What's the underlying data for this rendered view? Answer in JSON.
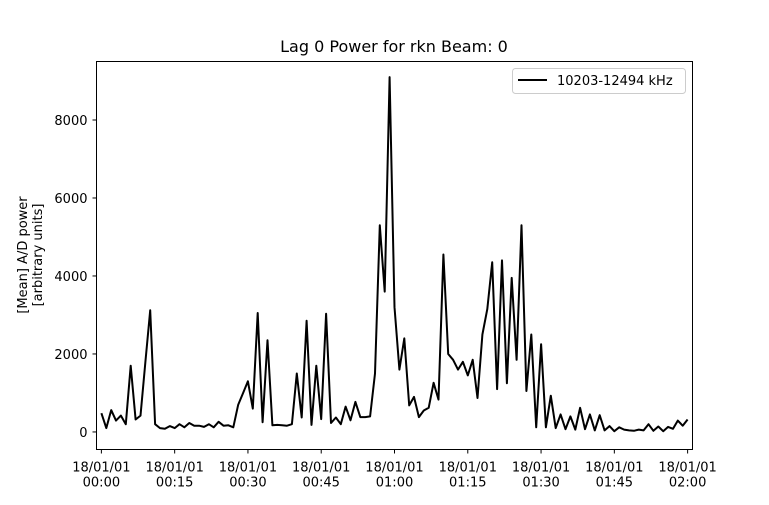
{
  "chart_data": {
    "type": "line",
    "title": "Lag 0 Power for rkn Beam: 0",
    "ylabel_line1": "[Mean] A/D power",
    "ylabel_line2": "[arbitrary units]",
    "xlabel": "",
    "ylim": [
      -450,
      9500
    ],
    "xlim": [
      -1,
      121
    ],
    "x_unit": "minutes after 18/01/01 00:00",
    "yticks": [
      0,
      2000,
      4000,
      6000,
      8000
    ],
    "xticks": [
      {
        "x": 0,
        "line1": "18/01/01",
        "line2": "00:00"
      },
      {
        "x": 15,
        "line1": "18/01/01",
        "line2": "00:15"
      },
      {
        "x": 30,
        "line1": "18/01/01",
        "line2": "00:30"
      },
      {
        "x": 45,
        "line1": "18/01/01",
        "line2": "00:45"
      },
      {
        "x": 60,
        "line1": "18/01/01",
        "line2": "01:00"
      },
      {
        "x": 75,
        "line1": "18/01/01",
        "line2": "01:15"
      },
      {
        "x": 90,
        "line1": "18/01/01",
        "line2": "01:30"
      },
      {
        "x": 105,
        "line1": "18/01/01",
        "line2": "01:45"
      },
      {
        "x": 120,
        "line1": "18/01/01",
        "line2": "02:00"
      }
    ],
    "legend_position": "top-right",
    "series": [
      {
        "name": "10203-12494 kHz",
        "color": "#000000",
        "points": [
          [
            0,
            480
          ],
          [
            1,
            100
          ],
          [
            2,
            560
          ],
          [
            3,
            290
          ],
          [
            4,
            420
          ],
          [
            5,
            200
          ],
          [
            6,
            1700
          ],
          [
            7,
            320
          ],
          [
            8,
            420
          ],
          [
            9,
            1800
          ],
          [
            10,
            3120
          ],
          [
            11,
            200
          ],
          [
            12,
            100
          ],
          [
            13,
            80
          ],
          [
            14,
            150
          ],
          [
            15,
            100
          ],
          [
            16,
            200
          ],
          [
            17,
            120
          ],
          [
            18,
            230
          ],
          [
            19,
            160
          ],
          [
            20,
            160
          ],
          [
            21,
            130
          ],
          [
            22,
            200
          ],
          [
            23,
            120
          ],
          [
            24,
            260
          ],
          [
            25,
            160
          ],
          [
            26,
            170
          ],
          [
            27,
            120
          ],
          [
            28,
            700
          ],
          [
            29,
            1000
          ],
          [
            30,
            1300
          ],
          [
            31,
            600
          ],
          [
            32,
            3050
          ],
          [
            33,
            250
          ],
          [
            34,
            2350
          ],
          [
            35,
            170
          ],
          [
            36,
            180
          ],
          [
            37,
            170
          ],
          [
            38,
            160
          ],
          [
            39,
            200
          ],
          [
            40,
            1500
          ],
          [
            41,
            370
          ],
          [
            42,
            2850
          ],
          [
            43,
            180
          ],
          [
            44,
            1700
          ],
          [
            45,
            330
          ],
          [
            46,
            3030
          ],
          [
            47,
            230
          ],
          [
            48,
            370
          ],
          [
            49,
            200
          ],
          [
            50,
            650
          ],
          [
            51,
            300
          ],
          [
            52,
            770
          ],
          [
            53,
            380
          ],
          [
            54,
            380
          ],
          [
            55,
            400
          ],
          [
            56,
            1500
          ],
          [
            57,
            5300
          ],
          [
            58,
            3600
          ],
          [
            59,
            9100
          ],
          [
            60,
            3200
          ],
          [
            61,
            1600
          ],
          [
            62,
            2400
          ],
          [
            63,
            680
          ],
          [
            64,
            900
          ],
          [
            65,
            380
          ],
          [
            66,
            550
          ],
          [
            67,
            620
          ],
          [
            68,
            1260
          ],
          [
            69,
            830
          ],
          [
            70,
            4550
          ],
          [
            71,
            2000
          ],
          [
            72,
            1850
          ],
          [
            73,
            1600
          ],
          [
            74,
            1800
          ],
          [
            75,
            1450
          ],
          [
            76,
            1850
          ],
          [
            77,
            870
          ],
          [
            78,
            2500
          ],
          [
            79,
            3150
          ],
          [
            80,
            4350
          ],
          [
            81,
            1100
          ],
          [
            82,
            4400
          ],
          [
            83,
            1250
          ],
          [
            84,
            3950
          ],
          [
            85,
            1850
          ],
          [
            86,
            5300
          ],
          [
            87,
            1050
          ],
          [
            88,
            2500
          ],
          [
            89,
            120
          ],
          [
            90,
            2250
          ],
          [
            91,
            120
          ],
          [
            92,
            930
          ],
          [
            93,
            100
          ],
          [
            94,
            450
          ],
          [
            95,
            70
          ],
          [
            96,
            400
          ],
          [
            97,
            60
          ],
          [
            98,
            620
          ],
          [
            99,
            70
          ],
          [
            100,
            450
          ],
          [
            101,
            40
          ],
          [
            102,
            430
          ],
          [
            103,
            40
          ],
          [
            104,
            150
          ],
          [
            105,
            20
          ],
          [
            106,
            120
          ],
          [
            107,
            60
          ],
          [
            108,
            40
          ],
          [
            109,
            30
          ],
          [
            110,
            60
          ],
          [
            111,
            40
          ],
          [
            112,
            200
          ],
          [
            113,
            30
          ],
          [
            114,
            140
          ],
          [
            115,
            20
          ],
          [
            116,
            130
          ],
          [
            117,
            80
          ],
          [
            118,
            290
          ],
          [
            119,
            160
          ],
          [
            120,
            320
          ]
        ]
      }
    ]
  }
}
